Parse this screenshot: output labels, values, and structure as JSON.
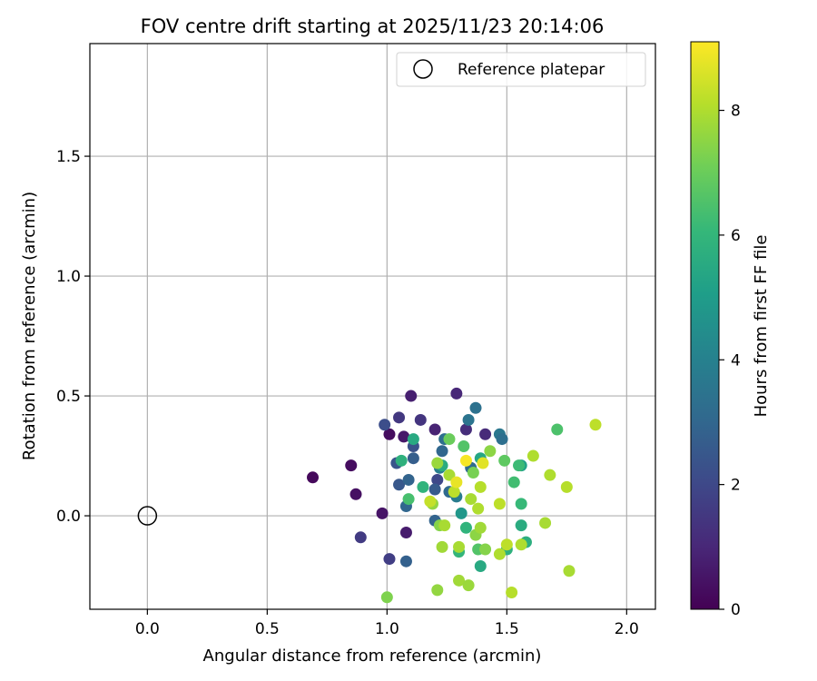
{
  "chart_data": {
    "type": "scatter",
    "title": "FOV centre drift starting at 2025/11/23 20:14:06",
    "xlabel": "Angular distance from reference (arcmin)",
    "ylabel": "Rotation from reference (arcmin)",
    "xlim": [
      -0.24,
      2.12
    ],
    "ylim": [
      -0.39,
      1.97
    ],
    "xticks": [
      0.0,
      0.5,
      1.0,
      1.5,
      2.0
    ],
    "xtick_labels": [
      "0.0",
      "0.5",
      "1.0",
      "1.5",
      "2.0"
    ],
    "yticks": [
      0.0,
      0.5,
      1.0,
      1.5
    ],
    "ytick_labels": [
      "0.0",
      "0.5",
      "1.0",
      "1.5"
    ],
    "grid": true,
    "legend": {
      "position": "top-right",
      "entries": [
        {
          "label": "Reference platepar",
          "marker": "open-circle",
          "x": 0.0,
          "y": 0.0
        }
      ]
    },
    "colorbar": {
      "label": "Hours from first FF file",
      "min": 0,
      "max": 9.1,
      "ticks": [
        0,
        2,
        4,
        6,
        8
      ],
      "tick_labels": [
        "0",
        "2",
        "4",
        "6",
        "8"
      ],
      "colormap": [
        "#440154",
        "#482878",
        "#3e4989",
        "#31688e",
        "#26828e",
        "#1f9e89",
        "#35b779",
        "#6ece58",
        "#b5de2b",
        "#fde725"
      ]
    },
    "points": [
      {
        "x": 0.69,
        "y": 0.16,
        "h": 0.2
      },
      {
        "x": 0.85,
        "y": 0.21,
        "h": 0.3
      },
      {
        "x": 0.87,
        "y": 0.09,
        "h": 0.4
      },
      {
        "x": 0.98,
        "y": 0.01,
        "h": 0.5
      },
      {
        "x": 1.01,
        "y": 0.34,
        "h": 0.3
      },
      {
        "x": 1.07,
        "y": 0.33,
        "h": 0.6
      },
      {
        "x": 1.08,
        "y": -0.07,
        "h": 0.7
      },
      {
        "x": 1.1,
        "y": 0.5,
        "h": 0.8
      },
      {
        "x": 1.2,
        "y": 0.36,
        "h": 0.9
      },
      {
        "x": 1.29,
        "y": 0.51,
        "h": 1.0
      },
      {
        "x": 1.33,
        "y": 0.36,
        "h": 1.2
      },
      {
        "x": 1.41,
        "y": 0.34,
        "h": 1.1
      },
      {
        "x": 1.05,
        "y": 0.41,
        "h": 1.5
      },
      {
        "x": 1.14,
        "y": 0.4,
        "h": 1.4
      },
      {
        "x": 0.89,
        "y": -0.09,
        "h": 1.6
      },
      {
        "x": 1.01,
        "y": -0.18,
        "h": 1.7
      },
      {
        "x": 0.99,
        "y": 0.38,
        "h": 2.2
      },
      {
        "x": 1.04,
        "y": 0.22,
        "h": 2.4
      },
      {
        "x": 1.05,
        "y": 0.13,
        "h": 2.5
      },
      {
        "x": 1.11,
        "y": 0.29,
        "h": 2.3
      },
      {
        "x": 1.21,
        "y": 0.15,
        "h": 2.0
      },
      {
        "x": 1.08,
        "y": -0.19,
        "h": 2.8
      },
      {
        "x": 1.08,
        "y": 0.04,
        "h": 3.0
      },
      {
        "x": 1.09,
        "y": 0.15,
        "h": 2.9
      },
      {
        "x": 1.11,
        "y": 0.24,
        "h": 2.7
      },
      {
        "x": 1.2,
        "y": -0.02,
        "h": 2.9
      },
      {
        "x": 1.23,
        "y": 0.27,
        "h": 3.0
      },
      {
        "x": 1.24,
        "y": 0.32,
        "h": 3.3
      },
      {
        "x": 1.26,
        "y": 0.1,
        "h": 3.1
      },
      {
        "x": 1.34,
        "y": 0.4,
        "h": 3.5
      },
      {
        "x": 1.37,
        "y": 0.45,
        "h": 3.4
      },
      {
        "x": 1.47,
        "y": 0.34,
        "h": 3.6
      },
      {
        "x": 1.48,
        "y": 0.32,
        "h": 3.3
      },
      {
        "x": 1.35,
        "y": 0.2,
        "h": 3.2
      },
      {
        "x": 1.2,
        "y": 0.11,
        "h": 2.6
      },
      {
        "x": 1.29,
        "y": 0.08,
        "h": 3.8
      },
      {
        "x": 1.22,
        "y": 0.2,
        "h": 3.9
      },
      {
        "x": 1.31,
        "y": 0.01,
        "h": 4.8
      },
      {
        "x": 1.56,
        "y": -0.04,
        "h": 5.6
      },
      {
        "x": 1.58,
        "y": -0.11,
        "h": 5.7
      },
      {
        "x": 1.56,
        "y": 0.21,
        "h": 5.2
      },
      {
        "x": 1.39,
        "y": 0.24,
        "h": 5.4
      },
      {
        "x": 1.11,
        "y": 0.32,
        "h": 5.5
      },
      {
        "x": 1.06,
        "y": 0.23,
        "h": 5.8
      },
      {
        "x": 1.15,
        "y": 0.12,
        "h": 5.9
      },
      {
        "x": 1.23,
        "y": 0.21,
        "h": 5.6
      },
      {
        "x": 1.33,
        "y": -0.05,
        "h": 5.9
      },
      {
        "x": 1.39,
        "y": -0.21,
        "h": 5.5
      },
      {
        "x": 1.5,
        "y": -0.14,
        "h": 5.8
      },
      {
        "x": 1.53,
        "y": 0.14,
        "h": 6.3
      },
      {
        "x": 1.55,
        "y": 0.21,
        "h": 6.2
      },
      {
        "x": 1.56,
        "y": 0.05,
        "h": 6.1
      },
      {
        "x": 1.71,
        "y": 0.36,
        "h": 6.5
      },
      {
        "x": 1.3,
        "y": -0.15,
        "h": 6.0
      },
      {
        "x": 1.09,
        "y": 0.07,
        "h": 6.4
      },
      {
        "x": 1.32,
        "y": 0.29,
        "h": 6.6
      },
      {
        "x": 1.49,
        "y": 0.23,
        "h": 6.8
      },
      {
        "x": 1.38,
        "y": -0.14,
        "h": 6.6
      },
      {
        "x": 1.36,
        "y": 0.18,
        "h": 7.2
      },
      {
        "x": 1.41,
        "y": -0.14,
        "h": 7.4
      },
      {
        "x": 1.37,
        "y": -0.08,
        "h": 7.5
      },
      {
        "x": 1.0,
        "y": -0.34,
        "h": 7.3
      },
      {
        "x": 1.19,
        "y": 0.05,
        "h": 7.6
      },
      {
        "x": 1.21,
        "y": 0.22,
        "h": 7.7
      },
      {
        "x": 1.26,
        "y": 0.32,
        "h": 7.0
      },
      {
        "x": 1.22,
        "y": -0.04,
        "h": 7.4
      },
      {
        "x": 1.24,
        "y": -0.04,
        "h": 7.9
      },
      {
        "x": 1.23,
        "y": -0.13,
        "h": 7.8
      },
      {
        "x": 1.21,
        "y": -0.31,
        "h": 7.6
      },
      {
        "x": 1.3,
        "y": -0.27,
        "h": 7.8
      },
      {
        "x": 1.34,
        "y": -0.29,
        "h": 7.7
      },
      {
        "x": 1.3,
        "y": -0.13,
        "h": 7.9
      },
      {
        "x": 1.39,
        "y": -0.05,
        "h": 7.8
      },
      {
        "x": 1.35,
        "y": 0.07,
        "h": 7.9
      },
      {
        "x": 1.38,
        "y": 0.03,
        "h": 8.0
      },
      {
        "x": 1.39,
        "y": 0.12,
        "h": 8.1
      },
      {
        "x": 1.43,
        "y": 0.27,
        "h": 7.5
      },
      {
        "x": 1.47,
        "y": 0.05,
        "h": 8.2
      },
      {
        "x": 1.47,
        "y": -0.16,
        "h": 8.0
      },
      {
        "x": 1.5,
        "y": -0.12,
        "h": 8.2
      },
      {
        "x": 1.52,
        "y": -0.32,
        "h": 8.1
      },
      {
        "x": 1.56,
        "y": -0.12,
        "h": 8.0
      },
      {
        "x": 1.61,
        "y": 0.25,
        "h": 8.0
      },
      {
        "x": 1.66,
        "y": -0.03,
        "h": 7.9
      },
      {
        "x": 1.68,
        "y": 0.17,
        "h": 8.0
      },
      {
        "x": 1.75,
        "y": 0.12,
        "h": 8.1
      },
      {
        "x": 1.76,
        "y": -0.23,
        "h": 7.9
      },
      {
        "x": 1.87,
        "y": 0.38,
        "h": 8.2
      },
      {
        "x": 1.26,
        "y": 0.17,
        "h": 7.9
      },
      {
        "x": 1.28,
        "y": 0.1,
        "h": 8.2
      },
      {
        "x": 1.29,
        "y": 0.14,
        "h": 8.8
      },
      {
        "x": 1.33,
        "y": 0.23,
        "h": 9.0
      },
      {
        "x": 1.4,
        "y": 0.22,
        "h": 8.7
      },
      {
        "x": 1.18,
        "y": 0.06,
        "h": 8.3
      }
    ]
  }
}
